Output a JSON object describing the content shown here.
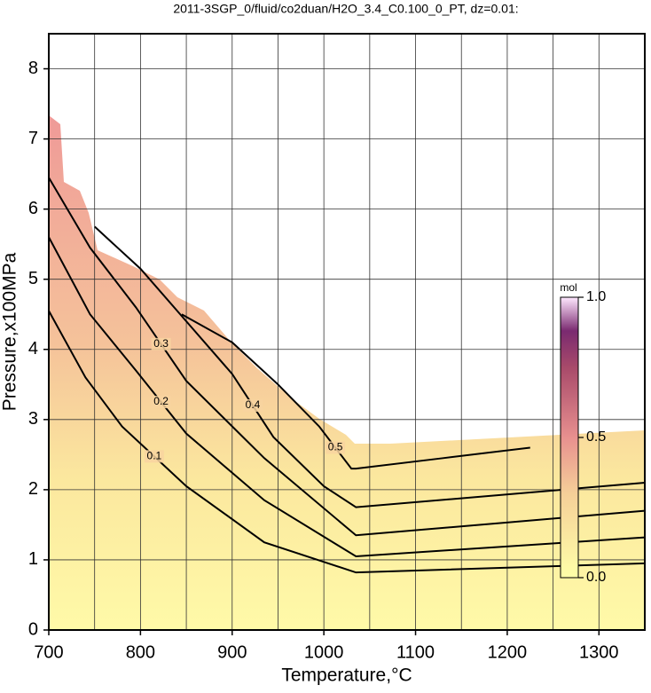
{
  "chart_data": {
    "type": "contour",
    "title": "2011-3SGP_0/fluid/co2duan/H2O_3.4_C0.100_0_PT, dz=0.01:",
    "x_label": "Temperature,°C",
    "y_label": "Pressure,x100MPa",
    "xlim": [
      700,
      1350
    ],
    "ylim": [
      0,
      8.5
    ],
    "xticks": [
      700,
      800,
      900,
      1000,
      1100,
      1200,
      1300
    ],
    "yticks": [
      0,
      1,
      2,
      3,
      4,
      5,
      6,
      7,
      8
    ],
    "x_grid": [
      750,
      850,
      950,
      1050,
      1150,
      1250
    ],
    "grid": true,
    "contours": [
      {
        "level": 0.1,
        "x": [
          700,
          740,
          780,
          850,
          935,
          1035,
          1350
        ],
        "y": [
          4.55,
          3.6,
          2.9,
          2.05,
          1.25,
          0.82,
          0.95
        ]
      },
      {
        "level": 0.2,
        "x": [
          700,
          745,
          795,
          850,
          935,
          1035,
          1350
        ],
        "y": [
          5.6,
          4.5,
          3.7,
          2.8,
          1.85,
          1.05,
          1.32
        ]
      },
      {
        "level": 0.3,
        "x": [
          700,
          745,
          795,
          850,
          935,
          1035,
          1350
        ],
        "y": [
          6.45,
          5.45,
          4.6,
          3.55,
          2.45,
          1.35,
          1.7
        ]
      },
      {
        "level": 0.4,
        "x": [
          750,
          800,
          850,
          900,
          945,
          1000,
          1035,
          1350
        ],
        "y": [
          5.75,
          5.15,
          4.4,
          3.65,
          2.75,
          2.05,
          1.75,
          2.1
        ]
      },
      {
        "level": 0.5,
        "x": [
          845,
          900,
          950,
          995,
          1030,
          1035,
          1130,
          1225
        ],
        "y": [
          4.5,
          4.1,
          3.5,
          2.9,
          2.3,
          2.3,
          2.45,
          2.6
        ]
      }
    ],
    "colorbar": {
      "label": "mol",
      "lim": [
        0,
        1
      ],
      "ticks": [
        {
          "value": 0,
          "label": "0.0"
        },
        0.5,
        {
          "value": 1,
          "label": "1.0"
        }
      ]
    }
  }
}
